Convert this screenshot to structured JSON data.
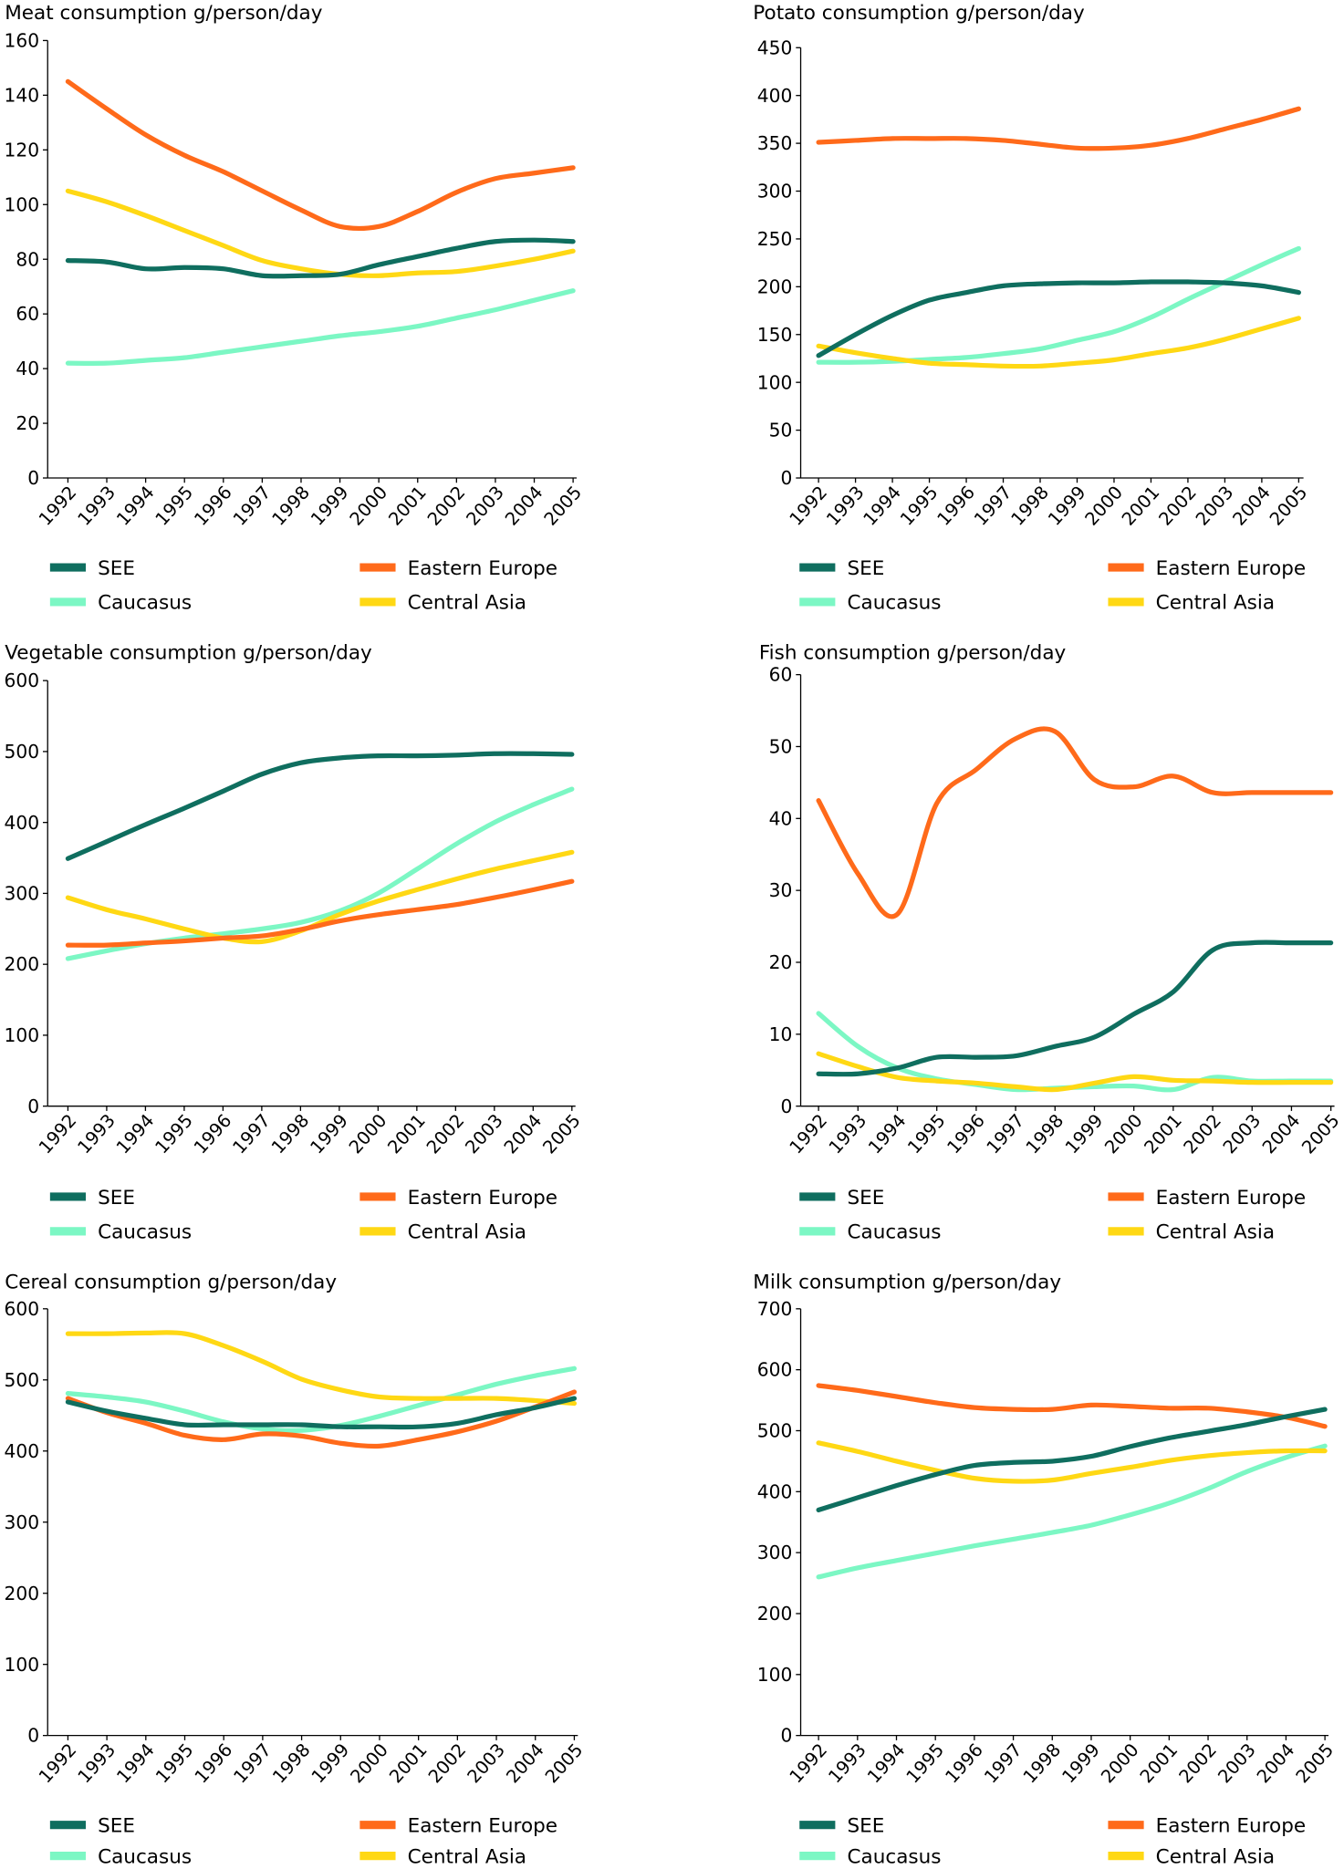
{
  "chart_data": [
    {
      "type": "line",
      "title": "Meat consumption g/person/day",
      "categories": [
        "1992",
        "1993",
        "1994",
        "1995",
        "1996",
        "1997",
        "1998",
        "1999",
        "2000",
        "2001",
        "2002",
        "2003",
        "2004",
        "2005"
      ],
      "ylim": [
        0,
        160
      ],
      "yticks": [
        0,
        20,
        40,
        60,
        80,
        100,
        120,
        140,
        160
      ],
      "grid": false,
      "legend": "bottom",
      "series": [
        {
          "name": "SEE",
          "color": "#0f6e5f",
          "values": [
            79.5,
            79,
            76.5,
            77,
            76.5,
            74,
            74,
            74.5,
            78,
            81,
            84,
            86.5,
            87,
            86.5
          ]
        },
        {
          "name": "Eastern Europe",
          "color": "#ff6a1a",
          "values": [
            145,
            135,
            125.5,
            118,
            112,
            105,
            98,
            92,
            92,
            97.5,
            104.5,
            109.5,
            111.5,
            113.5
          ]
        },
        {
          "name": "Caucasus",
          "color": "#7cf7c4",
          "values": [
            42,
            42,
            43,
            44,
            46,
            48,
            50,
            52,
            53.5,
            55.5,
            58.5,
            61.5,
            65,
            68.5
          ]
        },
        {
          "name": "Central Asia",
          "color": "#ffd814",
          "values": [
            105,
            101,
            96,
            90.5,
            85,
            79.5,
            76.5,
            74.5,
            74,
            75,
            75.5,
            77.5,
            80,
            83
          ]
        }
      ]
    },
    {
      "type": "line",
      "title": "Potato consumption g/person/day",
      "categories": [
        "1992",
        "1993",
        "1994",
        "1995",
        "1996",
        "1997",
        "1998",
        "1999",
        "2000",
        "2001",
        "2002",
        "2003",
        "2004",
        "2005"
      ],
      "ylim": [
        0,
        450
      ],
      "yticks": [
        0,
        50,
        100,
        150,
        200,
        250,
        300,
        350,
        400,
        450
      ],
      "grid": false,
      "legend": "bottom",
      "series": [
        {
          "name": "SEE",
          "color": "#0f6e5f",
          "values": [
            128,
            150,
            170,
            186,
            194,
            201,
            203,
            204,
            204,
            205,
            205,
            204,
            201,
            194
          ]
        },
        {
          "name": "Eastern Europe",
          "color": "#ff6a1a",
          "values": [
            351,
            353,
            355,
            355,
            355,
            353,
            349,
            345,
            345,
            348,
            355,
            365,
            375,
            386
          ]
        },
        {
          "name": "Caucasus",
          "color": "#7cf7c4",
          "values": [
            121,
            121,
            122,
            124,
            126,
            130,
            135,
            144,
            153,
            168,
            187,
            205,
            223,
            240
          ]
        },
        {
          "name": "Central Asia",
          "color": "#ffd814",
          "values": [
            138,
            131,
            125,
            120,
            118.5,
            117,
            117,
            120,
            123.5,
            130,
            136,
            145,
            156,
            167
          ]
        }
      ]
    },
    {
      "type": "line",
      "title": "Vegetable consumption g/person/day",
      "categories": [
        "1992",
        "1993",
        "1994",
        "1995",
        "1996",
        "1997",
        "1998",
        "1999",
        "2000",
        "2001",
        "2002",
        "2003",
        "2004",
        "2005"
      ],
      "ylim": [
        0,
        600
      ],
      "yticks": [
        0,
        100,
        200,
        300,
        400,
        500,
        600
      ],
      "grid": false,
      "legend": "bottom",
      "series": [
        {
          "name": "SEE",
          "color": "#0f6e5f",
          "values": [
            349,
            373,
            397,
            420,
            444,
            468,
            484,
            491,
            494,
            494,
            495,
            497,
            497,
            496
          ]
        },
        {
          "name": "Eastern Europe",
          "color": "#ff6a1a",
          "values": [
            227,
            227,
            230,
            233,
            237,
            240,
            249,
            261,
            270,
            277,
            284,
            294,
            305,
            317
          ]
        },
        {
          "name": "Caucasus",
          "color": "#7cf7c4",
          "values": [
            208,
            219,
            229,
            237,
            243,
            250,
            259,
            275,
            300,
            334,
            369,
            400,
            425,
            447
          ]
        },
        {
          "name": "Central Asia",
          "color": "#ffd814",
          "values": [
            294,
            277,
            264,
            250,
            237,
            232,
            247,
            270,
            289,
            305,
            320,
            334,
            346,
            358
          ]
        }
      ]
    },
    {
      "type": "line",
      "title": "Fish consumption g/person/day",
      "categories": [
        "1992",
        "1993",
        "1994",
        "1995",
        "1996",
        "1997",
        "1998",
        "1999",
        "2000",
        "2001",
        "2002",
        "2003",
        "2004",
        "2005"
      ],
      "ylim": [
        0,
        60
      ],
      "yticks": [
        0,
        10,
        20,
        30,
        40,
        50,
        60
      ],
      "grid": false,
      "legend": "bottom",
      "series": [
        {
          "name": "SEE",
          "color": "#0f6e5f",
          "values": [
            4.5,
            4.5,
            5.3,
            6.8,
            6.8,
            7,
            8.3,
            9.6,
            12.8,
            15.9,
            21.7,
            22.7,
            22.7,
            22.7
          ]
        },
        {
          "name": "Eastern Europe",
          "color": "#ff6a1a",
          "values": [
            42.5,
            32.3,
            26.7,
            42.1,
            46.8,
            51.1,
            52.1,
            45.4,
            44.4,
            45.9,
            43.6,
            43.6,
            43.6,
            43.6
          ]
        },
        {
          "name": "Caucasus",
          "color": "#7cf7c4",
          "values": [
            12.9,
            8.3,
            5.3,
            3.8,
            3,
            2.3,
            2.5,
            2.7,
            2.8,
            2.3,
            4,
            3.5,
            3.5,
            3.5
          ]
        },
        {
          "name": "Central Asia",
          "color": "#ffd814",
          "values": [
            7.3,
            5.5,
            4,
            3.5,
            3.2,
            2.7,
            2.3,
            3.2,
            4.1,
            3.6,
            3.5,
            3.3,
            3.3,
            3.3
          ]
        }
      ]
    },
    {
      "type": "line",
      "title": "Cereal consumption g/person/day",
      "categories": [
        "1992",
        "1993",
        "1994",
        "1995",
        "1996",
        "1997",
        "1998",
        "1999",
        "2000",
        "2001",
        "2002",
        "2003",
        "2004",
        "2005"
      ],
      "ylim": [
        0,
        600
      ],
      "yticks": [
        0,
        100,
        200,
        300,
        400,
        500,
        600
      ],
      "grid": false,
      "legend": "bottom",
      "series": [
        {
          "name": "SEE",
          "color": "#0f6e5f",
          "values": [
            469,
            456,
            446,
            437,
            437,
            437,
            437,
            434,
            434,
            434,
            439,
            451,
            461,
            474
          ]
        },
        {
          "name": "Eastern Europe",
          "color": "#ff6a1a",
          "values": [
            474,
            454,
            439,
            422,
            416,
            424,
            421,
            411,
            407,
            416,
            427,
            442,
            462,
            483
          ]
        },
        {
          "name": "Caucasus",
          "color": "#7cf7c4",
          "values": [
            481,
            476,
            469,
            456,
            441,
            431,
            429,
            436,
            449,
            464,
            479,
            494,
            506,
            516
          ]
        },
        {
          "name": "Central Asia",
          "color": "#ffd814",
          "values": [
            565,
            565,
            566,
            565,
            548,
            526,
            501,
            486,
            476,
            474,
            474,
            474,
            471,
            467
          ]
        }
      ]
    },
    {
      "type": "line",
      "title": "Milk consumption g/person/day",
      "categories": [
        "1992",
        "1993",
        "1994",
        "1995",
        "1996",
        "1997",
        "1998",
        "1999",
        "2000",
        "2001",
        "2002",
        "2003",
        "2004",
        "2005"
      ],
      "ylim": [
        0,
        700
      ],
      "yticks": [
        0,
        100,
        200,
        300,
        400,
        500,
        600,
        700
      ],
      "grid": false,
      "legend": "bottom",
      "series": [
        {
          "name": "SEE",
          "color": "#0f6e5f",
          "values": [
            370,
            390,
            410,
            428,
            443,
            448,
            450,
            458,
            474,
            488,
            499,
            510,
            523,
            535
          ]
        },
        {
          "name": "Eastern Europe",
          "color": "#ff6a1a",
          "values": [
            574,
            566,
            556,
            546,
            538,
            535,
            535,
            542,
            540,
            537,
            537,
            531,
            522,
            507
          ]
        },
        {
          "name": "Caucasus",
          "color": "#7cf7c4",
          "values": [
            260,
            275,
            287,
            299,
            311,
            322,
            333,
            345,
            362,
            381,
            405,
            433,
            456,
            475
          ]
        },
        {
          "name": "Central Asia",
          "color": "#ffd814",
          "values": [
            480,
            466,
            450,
            435,
            422,
            417,
            419,
            430,
            440,
            451,
            459,
            464,
            467,
            467
          ]
        }
      ]
    }
  ]
}
